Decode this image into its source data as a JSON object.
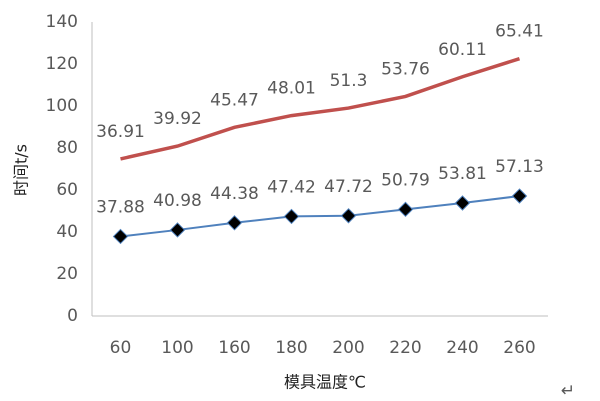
{
  "chart_data": {
    "type": "line",
    "stacked": true,
    "x_label": "模具温度℃",
    "y_label": "时间t/s",
    "annotation": "↵",
    "categories": [
      "60",
      "100",
      "160",
      "180",
      "200",
      "220",
      "240",
      "260"
    ],
    "series": [
      {
        "color": "#4f81bd",
        "marker": "diamond",
        "values": [
          37.88,
          40.98,
          44.38,
          47.42,
          47.72,
          50.79,
          53.81,
          57.13
        ]
      },
      {
        "color": "#c0504d",
        "marker": "none",
        "values": [
          36.91,
          39.92,
          45.47,
          48.01,
          51.3,
          53.76,
          60.11,
          65.41
        ]
      }
    ],
    "ylim": [
      0,
      140
    ],
    "yticks": [
      0,
      20,
      40,
      60,
      80,
      100,
      120,
      140
    ],
    "grid": false
  }
}
